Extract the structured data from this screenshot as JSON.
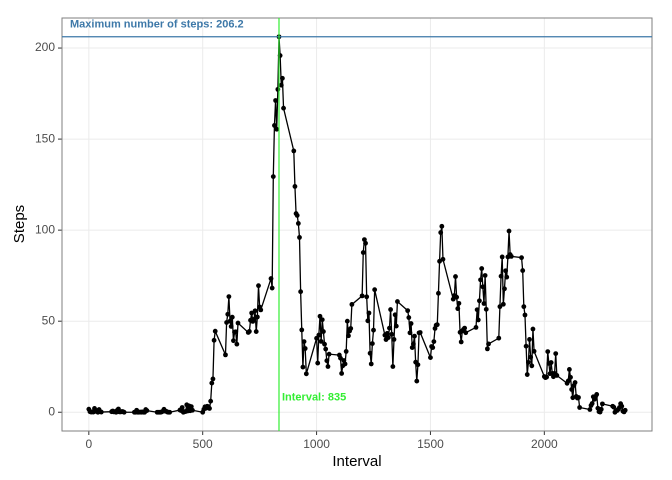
{
  "chart_data": {
    "type": "line",
    "x_label": "Interval",
    "y_label": "Steps",
    "xlim": [
      -117.75,
      2472.75
    ],
    "ylim": [
      -10.3,
      216.5
    ],
    "xticks": [
      0,
      500,
      1000,
      1500,
      2000
    ],
    "yticks": [
      0,
      50,
      100,
      150,
      200
    ],
    "grid": true,
    "x": [
      0,
      5,
      10,
      15,
      20,
      25,
      30,
      35,
      40,
      45,
      50,
      55,
      100,
      105,
      110,
      115,
      120,
      125,
      130,
      135,
      140,
      145,
      150,
      155,
      200,
      205,
      210,
      215,
      220,
      225,
      230,
      235,
      240,
      245,
      250,
      255,
      300,
      305,
      310,
      315,
      320,
      325,
      330,
      335,
      340,
      345,
      350,
      355,
      400,
      405,
      410,
      415,
      420,
      425,
      430,
      435,
      440,
      445,
      450,
      455,
      500,
      505,
      510,
      515,
      520,
      525,
      530,
      535,
      540,
      545,
      550,
      555,
      600,
      605,
      610,
      615,
      620,
      625,
      630,
      635,
      640,
      645,
      650,
      655,
      700,
      705,
      710,
      715,
      720,
      725,
      730,
      735,
      740,
      745,
      750,
      755,
      800,
      805,
      810,
      815,
      820,
      825,
      830,
      835,
      840,
      845,
      850,
      855,
      900,
      905,
      910,
      915,
      920,
      925,
      930,
      935,
      940,
      945,
      950,
      955,
      1000,
      1005,
      1010,
      1015,
      1020,
      1025,
      1030,
      1035,
      1040,
      1045,
      1050,
      1055,
      1100,
      1105,
      1110,
      1115,
      1120,
      1125,
      1130,
      1135,
      1140,
      1145,
      1150,
      1155,
      1200,
      1205,
      1210,
      1215,
      1220,
      1225,
      1230,
      1235,
      1240,
      1245,
      1250,
      1255,
      1300,
      1305,
      1310,
      1315,
      1320,
      1325,
      1330,
      1335,
      1340,
      1345,
      1350,
      1355,
      1400,
      1405,
      1410,
      1415,
      1420,
      1425,
      1430,
      1435,
      1440,
      1445,
      1450,
      1455,
      1500,
      1505,
      1510,
      1515,
      1520,
      1525,
      1530,
      1535,
      1540,
      1545,
      1550,
      1555,
      1600,
      1605,
      1610,
      1615,
      1620,
      1625,
      1630,
      1635,
      1640,
      1645,
      1650,
      1655,
      1700,
      1705,
      1710,
      1715,
      1720,
      1725,
      1730,
      1735,
      1740,
      1745,
      1750,
      1755,
      1800,
      1805,
      1810,
      1815,
      1820,
      1825,
      1830,
      1835,
      1840,
      1845,
      1850,
      1855,
      1900,
      1905,
      1910,
      1915,
      1920,
      1925,
      1930,
      1935,
      1940,
      1945,
      1950,
      1955,
      2000,
      2005,
      2010,
      2015,
      2020,
      2025,
      2030,
      2035,
      2040,
      2045,
      2050,
      2055,
      2100,
      2105,
      2110,
      2115,
      2120,
      2125,
      2130,
      2135,
      2140,
      2145,
      2150,
      2155,
      2200,
      2205,
      2210,
      2215,
      2220,
      2225,
      2230,
      2235,
      2240,
      2245,
      2250,
      2255,
      2300,
      2305,
      2310,
      2315,
      2320,
      2325,
      2330,
      2335,
      2340,
      2345,
      2350,
      2355
    ],
    "series": [
      {
        "color": "#000000",
        "values": [
          1.7,
          0.3,
          0.1,
          0.2,
          0.1,
          2.1,
          0.5,
          0.9,
          0,
          1.5,
          0.3,
          0.1,
          0.3,
          0.7,
          0.2,
          0.3,
          0,
          1.1,
          1.8,
          0.2,
          0.2,
          0.4,
          0.3,
          0,
          0,
          0,
          1.1,
          0,
          0,
          0.1,
          0,
          0.2,
          0,
          0,
          1.5,
          0.9,
          0,
          0,
          0,
          0,
          0.2,
          0.6,
          1.6,
          0.6,
          0.5,
          0.1,
          0,
          0,
          1.2,
          0.9,
          2.6,
          0,
          0.3,
          0.4,
          4.1,
          0.7,
          3.5,
          0.8,
          3.1,
          1.1,
          0,
          1.6,
          3,
          2.2,
          3.3,
          3,
          2.1,
          6.1,
          16,
          18.3,
          39.5,
          44.5,
          31.5,
          49.3,
          53.8,
          63.5,
          50,
          47.1,
          52.2,
          39.3,
          44,
          44.2,
          37.4,
          49,
          43.8,
          44.4,
          50.5,
          54.5,
          49.9,
          51,
          55.7,
          44.3,
          52.3,
          69.5,
          57.8,
          56.2,
          73.4,
          68.2,
          129.4,
          157.5,
          171.2,
          155.4,
          177.3,
          206.2,
          195.9,
          179.6,
          183.4,
          167,
          143.5,
          124,
          109.1,
          108.1,
          103.7,
          96,
          66.2,
          45.2,
          24.8,
          38.8,
          35,
          21.1,
          40.6,
          27,
          42.4,
          52.7,
          38.9,
          50.8,
          44.3,
          37.4,
          34.7,
          28.3,
          25.1,
          31.9,
          31.4,
          29.7,
          21.3,
          25.5,
          28.4,
          26.5,
          33.4,
          50,
          42,
          44.6,
          46,
          59.2,
          63.9,
          87.7,
          94.8,
          92.8,
          63.4,
          50.2,
          54.5,
          32.4,
          26.5,
          37.7,
          45.1,
          67.3,
          42.3,
          39.9,
          43.3,
          41,
          46.2,
          56.4,
          42.8,
          25.1,
          40,
          53.5,
          47.3,
          60.8,
          55.8,
          52,
          43.6,
          48.7,
          35.5,
          37.5,
          41.8,
          27.5,
          17.1,
          26.1,
          43.6,
          43.8,
          30,
          36.1,
          35.5,
          38.8,
          46,
          47.8,
          48.1,
          65.3,
          82.9,
          98.7,
          102.1,
          84,
          62.1,
          64.1,
          74.5,
          63.2,
          56.9,
          59.8,
          43.9,
          38.6,
          44.7,
          45.5,
          46.2,
          43.7,
          46.6,
          56.3,
          50.7,
          61.2,
          72.7,
          78.9,
          68.9,
          59.7,
          75.1,
          56.5,
          34.8,
          37.5,
          40.7,
          58,
          74.7,
          85.3,
          59.3,
          67.8,
          77.7,
          74.2,
          85.3,
          99.5,
          86.6,
          85.6,
          84.9,
          77.8,
          58,
          53.4,
          36.3,
          20.7,
          27.4,
          40,
          30.2,
          25.5,
          45.7,
          33.5,
          19.6,
          19,
          19.3,
          33.3,
          26.8,
          21.2,
          27.3,
          21.3,
          19.5,
          21.3,
          32.2,
          20.2,
          15.9,
          17.2,
          23.5,
          19.2,
          12.5,
          8,
          14.7,
          16.3,
          8.7,
          7.8,
          8.1,
          2.6,
          1.5,
          3.7,
          4.8,
          8.5,
          7.1,
          8.7,
          9.8,
          2.2,
          0.3,
          0.1,
          1.6,
          4.6,
          3.3,
          2.8,
          0,
          0.8,
          1,
          1.6,
          2.6,
          4.7,
          3.3,
          0.6,
          0.2,
          1.1
        ]
      }
    ],
    "hline": {
      "value": 206.2,
      "color": "#3d78a8",
      "label": "Maximum number of steps:  206.2"
    },
    "vline": {
      "value": 835,
      "color": "#33ee33",
      "label": "Interval:  835"
    }
  }
}
